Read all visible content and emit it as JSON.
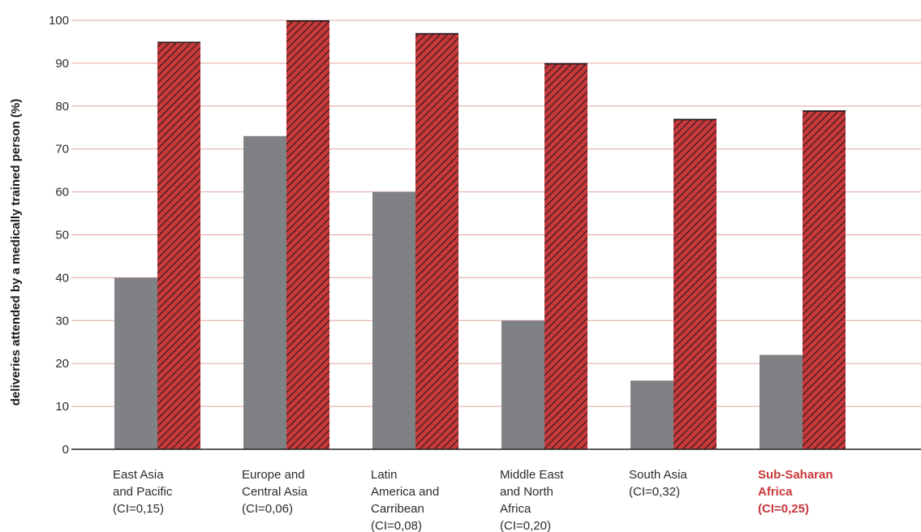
{
  "chart_data": {
    "type": "bar",
    "ylabel": "deliveries attended by a medically trained person (%)",
    "ylim": [
      0,
      100
    ],
    "yticks": [
      0,
      10,
      20,
      30,
      40,
      50,
      60,
      70,
      80,
      90,
      100
    ],
    "grid": true,
    "categories": [
      [
        "East Asia",
        "and Pacific",
        "(CI=0,15)"
      ],
      [
        "Europe and",
        "Central Asia",
        "(CI=0,06)"
      ],
      [
        "Latin",
        "America and",
        "Carribean",
        "(CI=0,08)"
      ],
      [
        "Middle East",
        "and North",
        "Africa",
        "(CI=0,20)"
      ],
      [
        "South Asia",
        "(CI=0,32)"
      ],
      [
        "Sub-Saharan",
        "Africa",
        "(CI=0,25)"
      ]
    ],
    "highlight_category": 5,
    "series": [
      {
        "color": "#808184",
        "pattern": "solid",
        "values": [
          40,
          73,
          60,
          30,
          16,
          22
        ]
      },
      {
        "color": "#c8383b",
        "pattern": "hatched",
        "values": [
          95,
          100,
          97,
          90,
          77,
          79
        ]
      }
    ],
    "colors": {
      "grid": "#e3a49f",
      "axis": "#222222",
      "highlight_text": "#c8383b"
    }
  }
}
